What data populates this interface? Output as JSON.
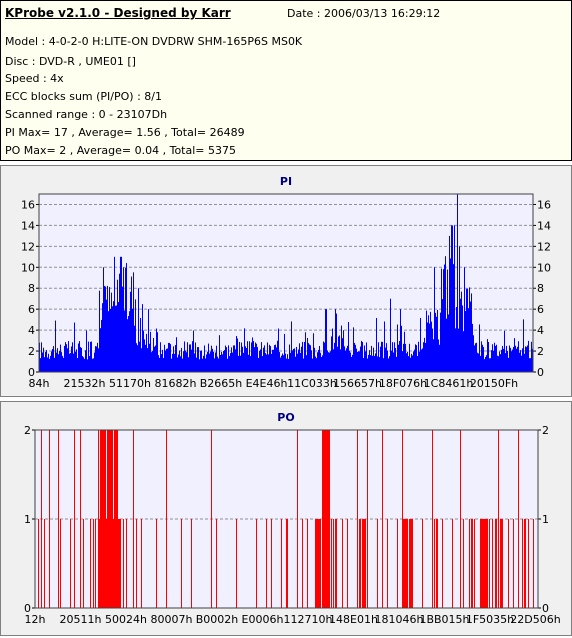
{
  "header": {
    "title": "KProbe v2.1.0 - Designed by Karr",
    "date": "Date : 2006/03/13 16:29:12",
    "lines": [
      "Model : 4-0-2-0 H:LITE-ON DVDRW SHM-165P6S MS0K",
      "Disc : DVD-R , UME01 []",
      "Speed : 4x",
      "ECC blocks sum (PI/PO) : 8/1",
      "Scanned range : 0 - 23107Dh",
      "PI Max= 17 , Average= 1.56 , Total= 26489",
      "PO Max= 2 , Average= 0.04 , Total= 5375"
    ]
  },
  "colors": {
    "pi": "#0000ff",
    "po": "#ff0000",
    "plot_bg": "#f0f0ff",
    "title": "#000080"
  },
  "chart_data": [
    {
      "type": "bar",
      "title": "PI",
      "ylim": [
        0,
        17
      ],
      "yticks": [
        0,
        2,
        4,
        6,
        8,
        10,
        12,
        14,
        16
      ],
      "grid": true,
      "xtick_labels": [
        "84h",
        "21532h",
        "51170h",
        "81682h",
        "B2665h",
        "E4E46h",
        "11C033h",
        "156657h",
        "18F076h",
        "1C8461h",
        "20150Fh"
      ],
      "segments": [
        {
          "x_start": 0.0,
          "x_end": 0.12,
          "level": 2
        },
        {
          "x_start": 0.12,
          "x_end": 0.155,
          "level": 6
        },
        {
          "x_start": 0.155,
          "x_end": 0.195,
          "level": 7
        },
        {
          "x_start": 0.195,
          "x_end": 0.24,
          "level": 3
        },
        {
          "x_start": 0.24,
          "x_end": 0.58,
          "level": 2
        },
        {
          "x_start": 0.58,
          "x_end": 0.62,
          "level": 3
        },
        {
          "x_start": 0.62,
          "x_end": 0.78,
          "level": 2
        },
        {
          "x_start": 0.78,
          "x_end": 0.81,
          "level": 4
        },
        {
          "x_start": 0.81,
          "x_end": 0.84,
          "level": 8
        },
        {
          "x_start": 0.84,
          "x_end": 0.875,
          "level": 6
        },
        {
          "x_start": 0.875,
          "x_end": 1.0,
          "level": 2
        }
      ],
      "spikes": [
        {
          "x": 0.13,
          "value": 10
        },
        {
          "x": 0.152,
          "value": 11
        },
        {
          "x": 0.165,
          "value": 11
        },
        {
          "x": 0.17,
          "value": 10
        },
        {
          "x": 0.2,
          "value": 8
        },
        {
          "x": 0.22,
          "value": 6
        },
        {
          "x": 0.58,
          "value": 6
        },
        {
          "x": 0.6,
          "value": 6
        },
        {
          "x": 0.71,
          "value": 7
        },
        {
          "x": 0.73,
          "value": 6
        },
        {
          "x": 0.8,
          "value": 10
        },
        {
          "x": 0.83,
          "value": 13
        },
        {
          "x": 0.835,
          "value": 14
        },
        {
          "x": 0.84,
          "value": 14
        },
        {
          "x": 0.846,
          "value": 17
        },
        {
          "x": 0.85,
          "value": 12
        },
        {
          "x": 0.86,
          "value": 10
        }
      ]
    },
    {
      "type": "bar",
      "title": "PO",
      "ylim": [
        0,
        2
      ],
      "yticks": [
        0,
        1,
        2
      ],
      "grid": true,
      "xtick_labels": [
        "12h",
        "20511h",
        "50024h",
        "80007h",
        "B0002h",
        "E0006h",
        "112710h",
        "148E01h",
        "181046h",
        "1BB015h",
        "1F5035h",
        "22D506h"
      ],
      "two_ranges": [
        [
          0.125,
          0.165
        ],
        [
          0.57,
          0.585
        ]
      ],
      "one_ranges": [
        [
          0.115,
          0.185
        ],
        [
          0.555,
          0.6
        ],
        [
          0.64,
          0.66
        ],
        [
          0.73,
          0.75
        ],
        [
          0.79,
          0.8
        ],
        [
          0.86,
          0.93
        ],
        [
          0.965,
          0.975
        ]
      ],
      "two_lines": [
        0.012,
        0.028,
        0.045,
        0.078,
        0.09,
        0.195,
        0.26,
        0.35,
        0.52,
        0.64,
        0.66,
        0.69,
        0.73,
        0.79,
        0.845,
        0.92,
        0.96
      ],
      "one_lines": [
        0.005,
        0.018,
        0.05,
        0.07,
        0.095,
        0.11,
        0.2,
        0.21,
        0.24,
        0.29,
        0.31,
        0.36,
        0.4,
        0.44,
        0.46,
        0.47,
        0.49,
        0.5,
        0.53,
        0.54,
        0.61,
        0.62,
        0.68,
        0.7,
        0.72,
        0.77,
        0.81,
        0.83,
        0.85,
        0.94,
        0.95,
        0.98,
        0.99
      ]
    }
  ]
}
